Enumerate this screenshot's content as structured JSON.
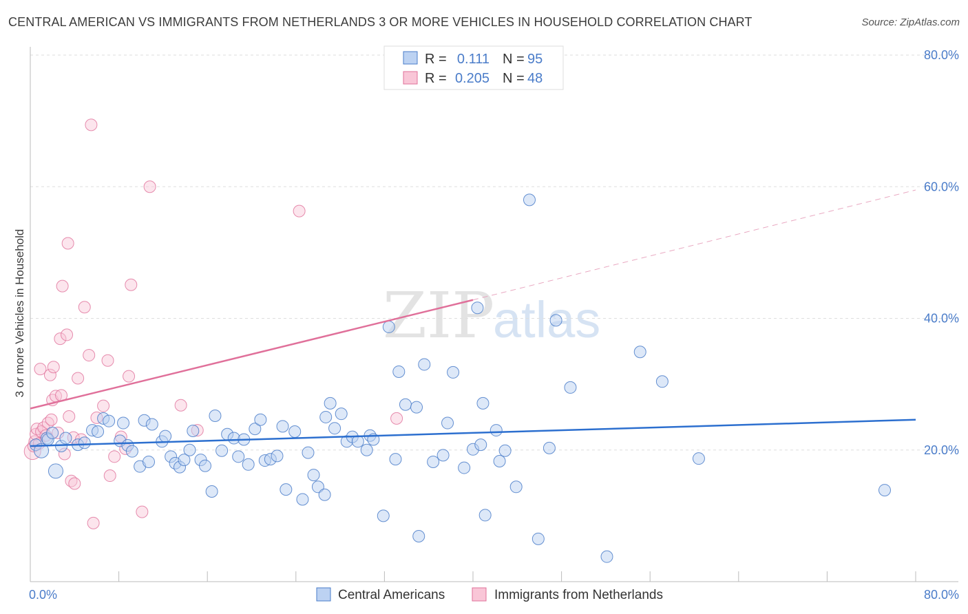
{
  "header": {
    "title": "CENTRAL AMERICAN VS IMMIGRANTS FROM NETHERLANDS 3 OR MORE VEHICLES IN HOUSEHOLD CORRELATION CHART",
    "source": "Source: ZipAtlas.com"
  },
  "watermark": {
    "zip": "ZIP",
    "atlas": "atlas"
  },
  "legend_top": {
    "rows": [
      {
        "r_label": "R =",
        "r_value": "0.111",
        "n_label": "N =",
        "n_value": "95"
      },
      {
        "r_label": "R =",
        "r_value": "0.205",
        "n_label": "N =",
        "n_value": "48"
      }
    ]
  },
  "chart_data": {
    "type": "scatter",
    "title": "CENTRAL AMERICAN VS IMMIGRANTS FROM NETHERLANDS 3 OR MORE VEHICLES IN HOUSEHOLD CORRELATION CHART",
    "xlabel": "",
    "ylabel": "3 or more Vehicles in Household",
    "xlim": [
      0,
      80
    ],
    "ylim": [
      0,
      80
    ],
    "x_tick_labels": [
      "0.0%",
      "80.0%"
    ],
    "y_ticks": [
      20,
      40,
      60,
      80
    ],
    "y_tick_labels": [
      "20.0%",
      "40.0%",
      "60.0%",
      "80.0%"
    ],
    "grid": "horizontal dashed",
    "legend_placement": "top-center and bottom",
    "colors": {
      "Central Americans": "#4a7cc9",
      "Immigrants from Netherlands": "#e0709a"
    },
    "series": [
      {
        "name": "Central Americans",
        "R": 0.111,
        "N": 95,
        "trend": {
          "x": [
            0,
            80
          ],
          "y": [
            20.6,
            24.6
          ]
        },
        "points": [
          [
            0.5,
            20.8
          ],
          [
            1.0,
            19.9
          ],
          [
            1.5,
            21.8
          ],
          [
            2.3,
            16.8
          ],
          [
            2.8,
            20.6
          ],
          [
            3.2,
            21.8
          ],
          [
            4.3,
            20.8
          ],
          [
            4.9,
            21.1
          ],
          [
            5.6,
            23.0
          ],
          [
            6.1,
            22.8
          ],
          [
            6.6,
            24.8
          ],
          [
            7.1,
            24.4
          ],
          [
            8.1,
            21.4
          ],
          [
            8.4,
            24.1
          ],
          [
            8.8,
            20.7
          ],
          [
            9.2,
            19.8
          ],
          [
            9.9,
            17.5
          ],
          [
            10.3,
            24.5
          ],
          [
            10.7,
            18.2
          ],
          [
            11.0,
            23.9
          ],
          [
            11.9,
            21.3
          ],
          [
            12.2,
            22.1
          ],
          [
            12.7,
            19.0
          ],
          [
            13.1,
            18.0
          ],
          [
            13.5,
            17.4
          ],
          [
            13.9,
            18.5
          ],
          [
            14.4,
            20.0
          ],
          [
            14.7,
            22.9
          ],
          [
            15.4,
            18.5
          ],
          [
            15.8,
            17.6
          ],
          [
            16.4,
            13.7
          ],
          [
            16.7,
            25.2
          ],
          [
            17.3,
            19.9
          ],
          [
            17.8,
            22.4
          ],
          [
            18.4,
            21.8
          ],
          [
            18.8,
            19.0
          ],
          [
            19.3,
            21.6
          ],
          [
            19.7,
            17.8
          ],
          [
            20.3,
            23.2
          ],
          [
            20.8,
            24.6
          ],
          [
            21.2,
            18.4
          ],
          [
            21.7,
            18.6
          ],
          [
            22.3,
            19.1
          ],
          [
            22.8,
            23.6
          ],
          [
            23.1,
            14.0
          ],
          [
            23.9,
            22.8
          ],
          [
            24.6,
            12.5
          ],
          [
            25.1,
            19.6
          ],
          [
            25.6,
            16.2
          ],
          [
            26.0,
            14.4
          ],
          [
            26.6,
            13.2
          ],
          [
            27.1,
            27.1
          ],
          [
            27.5,
            23.3
          ],
          [
            28.1,
            25.5
          ],
          [
            28.6,
            21.3
          ],
          [
            29.1,
            22.0
          ],
          [
            29.6,
            21.3
          ],
          [
            30.4,
            20.0
          ],
          [
            30.7,
            22.2
          ],
          [
            31.0,
            21.6
          ],
          [
            31.9,
            10.0
          ],
          [
            32.4,
            38.7
          ],
          [
            33.0,
            18.6
          ],
          [
            33.3,
            31.9
          ],
          [
            33.9,
            26.9
          ],
          [
            34.9,
            26.5
          ],
          [
            35.1,
            6.9
          ],
          [
            35.6,
            33.0
          ],
          [
            36.4,
            18.2
          ],
          [
            37.3,
            19.2
          ],
          [
            37.7,
            24.1
          ],
          [
            38.2,
            31.8
          ],
          [
            39.2,
            17.3
          ],
          [
            40.0,
            20.1
          ],
          [
            40.4,
            41.6
          ],
          [
            40.7,
            20.8
          ],
          [
            40.9,
            27.1
          ],
          [
            41.1,
            10.1
          ],
          [
            42.1,
            23.0
          ],
          [
            42.4,
            18.3
          ],
          [
            42.9,
            19.9
          ],
          [
            43.9,
            14.4
          ],
          [
            45.1,
            58.0
          ],
          [
            45.9,
            6.5
          ],
          [
            46.9,
            20.3
          ],
          [
            47.5,
            39.7
          ],
          [
            48.8,
            29.5
          ],
          [
            52.1,
            3.8
          ],
          [
            55.1,
            34.9
          ],
          [
            57.1,
            30.4
          ],
          [
            60.4,
            18.7
          ],
          [
            77.2,
            13.9
          ],
          [
            1.6,
            21.6
          ],
          [
            2.0,
            22.6
          ],
          [
            26.7,
            25.0
          ]
        ]
      },
      {
        "name": "Immigrants from Netherlands",
        "R": 0.205,
        "N": 48,
        "trend": {
          "x": [
            0,
            40
          ],
          "y": [
            26.3,
            42.8
          ]
        },
        "trend_extended": {
          "x": [
            40,
            80
          ],
          "y": [
            42.8,
            59.5
          ]
        },
        "points": [
          [
            0.2,
            19.8
          ],
          [
            0.3,
            20.6
          ],
          [
            0.4,
            21.3
          ],
          [
            0.5,
            22.4
          ],
          [
            0.6,
            23.2
          ],
          [
            0.8,
            21.0
          ],
          [
            1.0,
            22.8
          ],
          [
            1.2,
            23.4
          ],
          [
            1.4,
            22.2
          ],
          [
            1.6,
            24.1
          ],
          [
            1.8,
            31.4
          ],
          [
            1.9,
            24.6
          ],
          [
            2.0,
            27.6
          ],
          [
            2.1,
            32.6
          ],
          [
            2.3,
            28.2
          ],
          [
            2.5,
            22.6
          ],
          [
            2.7,
            36.9
          ],
          [
            2.8,
            28.3
          ],
          [
            2.9,
            44.9
          ],
          [
            3.1,
            19.4
          ],
          [
            3.3,
            37.5
          ],
          [
            3.4,
            51.4
          ],
          [
            3.5,
            25.1
          ],
          [
            3.7,
            15.3
          ],
          [
            3.9,
            21.9
          ],
          [
            4.0,
            14.9
          ],
          [
            4.3,
            30.9
          ],
          [
            4.6,
            21.6
          ],
          [
            4.9,
            41.7
          ],
          [
            5.3,
            34.4
          ],
          [
            5.5,
            69.4
          ],
          [
            5.7,
            8.9
          ],
          [
            6.0,
            24.9
          ],
          [
            6.6,
            26.7
          ],
          [
            7.0,
            33.6
          ],
          [
            7.2,
            16.1
          ],
          [
            7.6,
            19.0
          ],
          [
            8.2,
            22.0
          ],
          [
            8.6,
            20.2
          ],
          [
            8.9,
            31.2
          ],
          [
            9.1,
            45.1
          ],
          [
            10.1,
            10.6
          ],
          [
            10.8,
            60.0
          ],
          [
            13.6,
            26.8
          ],
          [
            15.1,
            23.0
          ],
          [
            24.3,
            56.3
          ],
          [
            33.1,
            24.8
          ],
          [
            0.9,
            32.3
          ]
        ]
      }
    ]
  },
  "legend_bottom": {
    "items": [
      {
        "label": "Central Americans"
      },
      {
        "label": "Immigrants from Netherlands"
      }
    ]
  }
}
